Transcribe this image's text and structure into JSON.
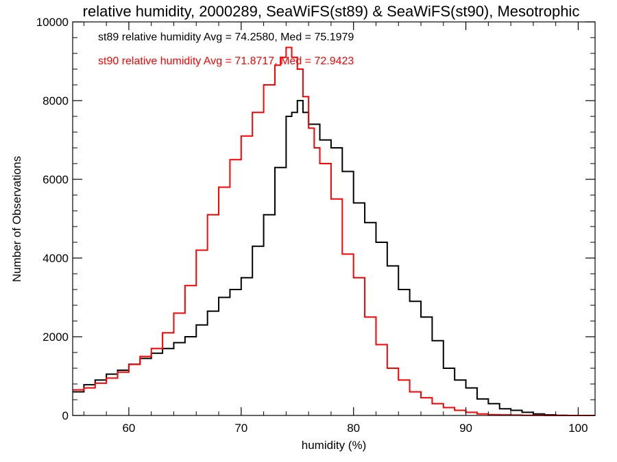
{
  "chart_data": {
    "type": "line",
    "title": "relative humidity, 2000289, SeaWiFS(st89) & SeaWiFS(st90), Mesotrophic",
    "xlabel": "humidity (%)",
    "ylabel": "Number of Observations",
    "xlim": [
      55,
      101.5
    ],
    "ylim": [
      0,
      10000
    ],
    "x_ticks": [
      60,
      70,
      80,
      90,
      100
    ],
    "y_ticks": [
      0,
      2000,
      4000,
      6000,
      8000,
      10000
    ],
    "x_tick_labels": [
      "60",
      "70",
      "80",
      "90",
      "100"
    ],
    "y_tick_labels": [
      "0",
      "2000",
      "4000",
      "6000",
      "8000",
      "10000"
    ],
    "grid": false,
    "legend_placement": "top-left",
    "step": true,
    "series": [
      {
        "name": "st89 relative humidity Avg = 74.2580, Med = 75.1979",
        "color": "#000000",
        "x": [
          55,
          56,
          57,
          58,
          59,
          60,
          61,
          62,
          63,
          64,
          65,
          66,
          67,
          68,
          69,
          70,
          71,
          72,
          73,
          74,
          74.5,
          75,
          75.5,
          76,
          77,
          78,
          79,
          80,
          81,
          82,
          83,
          84,
          85,
          86,
          87,
          88,
          89,
          90,
          91,
          92,
          93,
          94,
          95,
          96,
          97,
          98,
          99,
          100,
          101,
          101.5
        ],
        "y": [
          600,
          780,
          900,
          1050,
          1150,
          1300,
          1450,
          1580,
          1700,
          1850,
          2000,
          2300,
          2650,
          3000,
          3200,
          3500,
          4300,
          5100,
          6300,
          7600,
          7700,
          8000,
          7700,
          7400,
          7000,
          6800,
          6200,
          5400,
          4900,
          4400,
          3800,
          3200,
          2900,
          2500,
          1900,
          1200,
          900,
          700,
          420,
          300,
          170,
          130,
          80,
          40,
          15,
          5,
          0,
          0,
          0,
          0
        ]
      },
      {
        "name": "st90 relative humidity Avg = 71.8717, Med = 72.9423",
        "color": "#ff0000",
        "x": [
          55,
          56,
          57,
          58,
          59,
          60,
          61,
          62,
          63,
          64,
          65,
          66,
          67,
          68,
          69,
          70,
          71,
          72,
          73,
          73.5,
          74,
          74.5,
          75,
          75.5,
          76,
          76.5,
          77,
          78,
          79,
          80,
          81,
          82,
          83,
          84,
          85,
          86,
          87,
          88,
          89,
          90,
          91,
          92,
          93,
          94,
          95,
          96,
          97,
          98,
          99,
          100,
          101,
          101.5
        ],
        "y": [
          650,
          700,
          820,
          950,
          1100,
          1300,
          1500,
          1700,
          2100,
          2600,
          3300,
          4200,
          5100,
          5800,
          6500,
          7100,
          7700,
          8400,
          8900,
          9100,
          9350,
          9100,
          8800,
          8100,
          7300,
          6800,
          6400,
          5500,
          4100,
          3500,
          2500,
          1800,
          1200,
          900,
          600,
          450,
          300,
          200,
          130,
          80,
          40,
          20,
          15,
          10,
          5,
          5,
          0,
          0,
          0,
          0,
          0,
          0
        ]
      }
    ]
  }
}
